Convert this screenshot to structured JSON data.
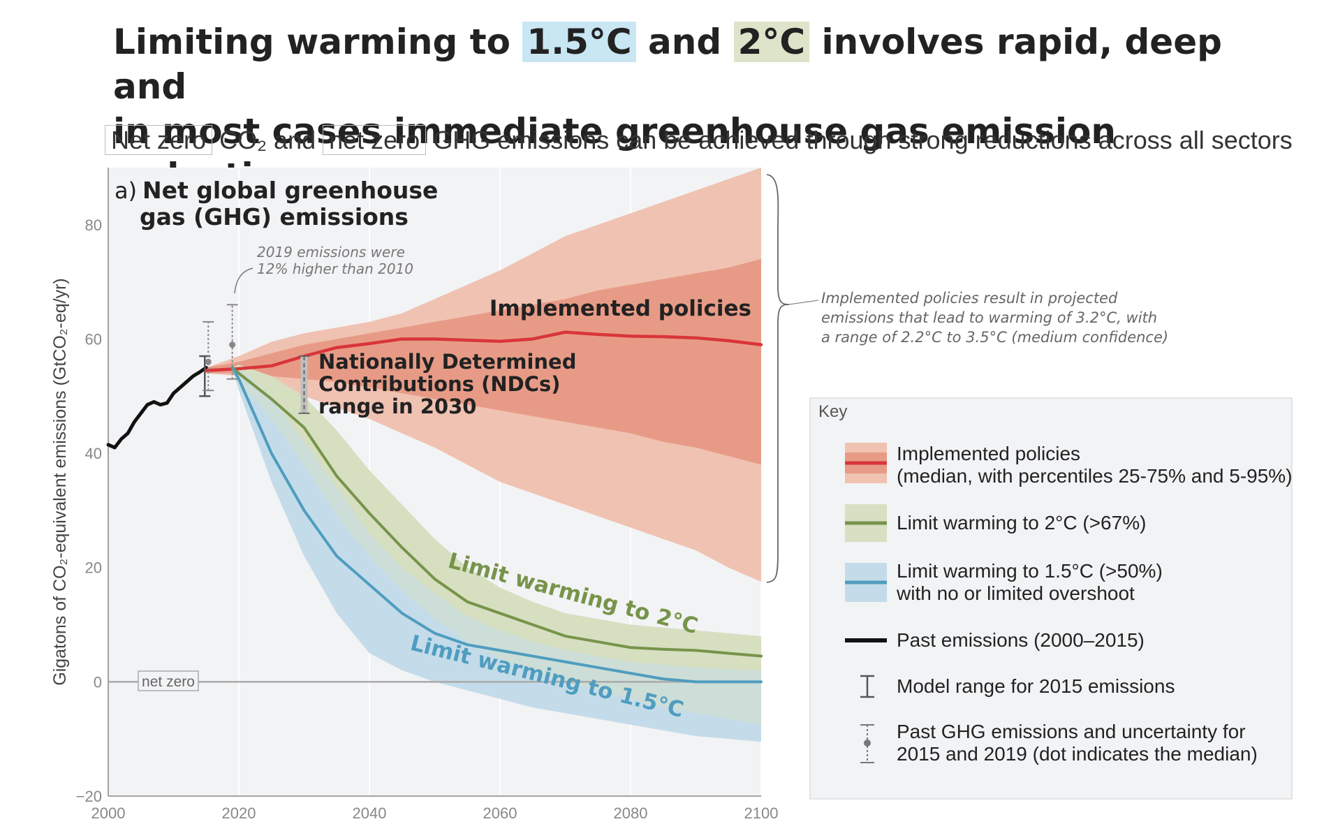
{
  "header": {
    "title_part1": "Limiting warming to ",
    "title_hl1": "1.5°C",
    "title_part2": " and ",
    "title_hl2": "2°C",
    "title_part3": " involves rapid, deep and",
    "title_line2": "in most cases immediate greenhouse gas emission reductions",
    "subtitle_box1": "Net zero",
    "subtitle_part1": " CO₂ and ",
    "subtitle_box2": "net zero",
    "subtitle_part2": " GHG emissions can be achieved through strong reductions across all sectors"
  },
  "colors": {
    "implemented": "#d9353a",
    "implemented_band_outer": "#f0c2b2",
    "implemented_band_inner": "#e79b86",
    "two_deg": "#77944a",
    "two_deg_band": "#d8dfc2",
    "one_five": "#4f9dbf",
    "one_five_band": "#c4dce9",
    "past": "#111111",
    "plot_bg": "#f2f3f5"
  },
  "chart_data": {
    "type": "area",
    "panel_label": "a)",
    "title": "Net global greenhouse gas (GHG) emissions",
    "ylabel": "Gigatons of CO₂-equivalent emissions (GtCO₂-eq/yr)",
    "xlim": [
      2000,
      2100
    ],
    "ylim": [
      -20,
      90
    ],
    "x_ticks": [
      2000,
      2020,
      2040,
      2060,
      2080,
      2100
    ],
    "y_ticks": [
      -20,
      0,
      20,
      40,
      60,
      80
    ],
    "net_zero_label": "net zero",
    "past_emissions": {
      "x": [
        2000,
        2001,
        2002,
        2003,
        2004,
        2005,
        2006,
        2007,
        2008,
        2009,
        2010,
        2011,
        2012,
        2013,
        2014,
        2015
      ],
      "y": [
        41.5,
        41,
        42.5,
        43.5,
        45.5,
        47,
        48.5,
        49,
        48.5,
        48.8,
        50.5,
        51.5,
        52.5,
        53.5,
        54.2,
        55
      ]
    },
    "implemented_policies": {
      "label": "Implemented policies",
      "x": [
        2015,
        2020,
        2025,
        2030,
        2035,
        2040,
        2045,
        2050,
        2055,
        2060,
        2065,
        2070,
        2075,
        2080,
        2085,
        2090,
        2095,
        2100
      ],
      "median": [
        54.5,
        54.8,
        55.3,
        57,
        58.5,
        59.2,
        60,
        60,
        59.8,
        59.6,
        60,
        61.2,
        60.8,
        60.5,
        60.4,
        60.2,
        59.7,
        59
      ],
      "p25": [
        54,
        54,
        53.5,
        53,
        52.5,
        51.5,
        50.5,
        49.5,
        48.5,
        47.5,
        46.5,
        45.5,
        44.5,
        43.5,
        42,
        41,
        39.5,
        38
      ],
      "p75": [
        55,
        56,
        57.5,
        59,
        60,
        61,
        62,
        63,
        64,
        65,
        66,
        67,
        68.5,
        69.5,
        70.5,
        71.5,
        72.5,
        74
      ],
      "p5": [
        54,
        53.5,
        52,
        50,
        48,
        46,
        43.5,
        41,
        38,
        35,
        33,
        31,
        29,
        27,
        25,
        23,
        20,
        17.5
      ],
      "p95": [
        55,
        57,
        59.5,
        61,
        62,
        63,
        64.5,
        67,
        69.5,
        72,
        75,
        78,
        80,
        82,
        84,
        86,
        88,
        90
      ]
    },
    "two_deg": {
      "label": "Limit warming to 2°C",
      "x": [
        2019,
        2020,
        2025,
        2030,
        2035,
        2040,
        2045,
        2050,
        2055,
        2060,
        2065,
        2070,
        2075,
        2080,
        2085,
        2090,
        2095,
        2100
      ],
      "median": [
        55,
        54,
        49.5,
        44.5,
        36,
        29.5,
        23.5,
        18,
        14,
        12,
        10,
        8,
        7,
        6,
        5.7,
        5.5,
        5,
        4.5
      ],
      "low": [
        55,
        52.5,
        46,
        38,
        29,
        22,
        16,
        11,
        7,
        4,
        2,
        0,
        -1.5,
        -3,
        -4.5,
        -5.5,
        -6.5,
        -7.5
      ],
      "high": [
        55,
        55.5,
        53.5,
        50,
        44,
        37,
        31,
        25,
        20,
        16.5,
        14,
        12,
        11,
        10,
        9.5,
        9,
        8.5,
        8
      ]
    },
    "one_five": {
      "label": "Limit warming to 1.5°C",
      "x": [
        2019,
        2020,
        2025,
        2030,
        2035,
        2040,
        2045,
        2050,
        2055,
        2060,
        2065,
        2070,
        2075,
        2080,
        2085,
        2090,
        2095,
        2100
      ],
      "median": [
        55,
        53,
        40,
        30,
        22,
        17,
        12,
        8.5,
        6.5,
        5.5,
        4.5,
        3.5,
        2.5,
        1.5,
        0.5,
        0,
        0,
        0
      ],
      "low": [
        55,
        51,
        35,
        22,
        12,
        5,
        2,
        0,
        -1.5,
        -3,
        -4.5,
        -5.5,
        -6.5,
        -7.5,
        -8.5,
        -9.5,
        -10,
        -10.5
      ],
      "high": [
        55,
        55,
        50,
        42,
        34,
        26,
        20,
        15.5,
        11.5,
        9,
        7,
        5.5,
        4.5,
        3.5,
        3,
        2.5,
        2.2,
        2
      ]
    },
    "model_range_2015": {
      "x": 2015,
      "low": 50,
      "high": 57,
      "median": 55
    },
    "past_uncertainty": [
      {
        "x": 2015,
        "low": 51,
        "high": 63,
        "median": 56
      },
      {
        "x": 2019,
        "low": 53,
        "high": 66,
        "median": 59
      }
    ],
    "ndc_range_2030": {
      "x": 2030,
      "low": 47,
      "high": 57
    },
    "annotations": {
      "emissions_2019": [
        "2019 emissions were",
        "12% higher than 2010"
      ],
      "implemented_label": "Implemented policies",
      "ndc": [
        "Nationally Determined",
        "Contributions (NDCs)",
        "range in 2030"
      ],
      "two_deg_curve": "Limit warming to 2°C",
      "one_five_curve": "Limit warming to 1.5°C",
      "brace_note": [
        "Implemented policies result in projected",
        "emissions that lead to warming of 3.2°C, with",
        "a range of 2.2°C to 3.5°C (medium confidence)"
      ]
    },
    "legend": {
      "title": "Key",
      "placement": "right",
      "items": [
        {
          "line1": "Implemented policies",
          "line2": "(median, with percentiles 25-75% and 5-95%)"
        },
        {
          "line1": "Limit warming to 2°C (>67%)",
          "line2": ""
        },
        {
          "line1": "Limit warming to 1.5°C (>50%)",
          "line2": "with no or limited overshoot"
        },
        {
          "line1": "Past emissions (2000–2015)",
          "line2": ""
        },
        {
          "line1": "Model range for 2015 emissions",
          "line2": ""
        },
        {
          "line1": "Past GHG emissions and uncertainty for",
          "line2": "2015 and 2019 (dot indicates the median)"
        }
      ]
    }
  }
}
